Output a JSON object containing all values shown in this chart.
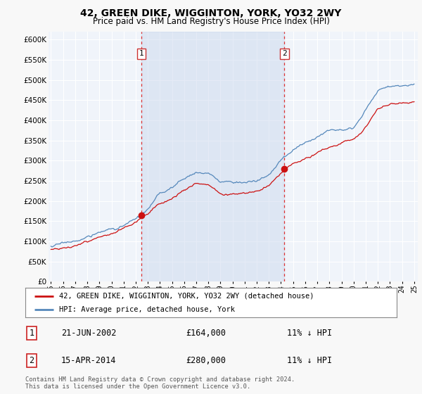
{
  "title": "42, GREEN DIKE, WIGGINTON, YORK, YO32 2WY",
  "subtitle": "Price paid vs. HM Land Registry's House Price Index (HPI)",
  "ylim": [
    0,
    620000
  ],
  "yticks": [
    0,
    50000,
    100000,
    150000,
    200000,
    250000,
    300000,
    350000,
    400000,
    450000,
    500000,
    550000,
    600000
  ],
  "ytick_labels": [
    "£0",
    "£50K",
    "£100K",
    "£150K",
    "£200K",
    "£250K",
    "£300K",
    "£350K",
    "£400K",
    "£450K",
    "£500K",
    "£550K",
    "£600K"
  ],
  "xlim_start": 1994.8,
  "xlim_end": 2025.3,
  "xtick_years": [
    1995,
    1996,
    1997,
    1998,
    1999,
    2000,
    2001,
    2002,
    2003,
    2004,
    2005,
    2006,
    2007,
    2008,
    2009,
    2010,
    2011,
    2012,
    2013,
    2014,
    2015,
    2016,
    2017,
    2018,
    2019,
    2020,
    2021,
    2022,
    2023,
    2024,
    2025
  ],
  "xtick_labels": [
    "95",
    "96",
    "97",
    "98",
    "99",
    "00",
    "01",
    "02",
    "03",
    "04",
    "05",
    "06",
    "07",
    "08",
    "09",
    "10",
    "11",
    "12",
    "13",
    "14",
    "15",
    "16",
    "17",
    "18",
    "19",
    "20",
    "21",
    "22",
    "23",
    "24",
    "25"
  ],
  "background_color": "#f8f8f8",
  "plot_bg_color": "#f0f4fa",
  "grid_color": "#ffffff",
  "shade_color": "#ccd9ee",
  "sale1_x": 2002.47,
  "sale1_y": 164000,
  "sale1_label": "1",
  "sale2_x": 2014.29,
  "sale2_y": 280000,
  "sale2_label": "2",
  "vline1_x": 2002.47,
  "vline2_x": 2014.29,
  "vline_color": "#dd3333",
  "red_line_color": "#cc1111",
  "blue_line_color": "#5588bb",
  "legend_label_red": "42, GREEN DIKE, WIGGINTON, YORK, YO32 2WY (detached house)",
  "legend_label_blue": "HPI: Average price, detached house, York",
  "footer_text": "Contains HM Land Registry data © Crown copyright and database right 2024.\nThis data is licensed under the Open Government Licence v3.0.",
  "table_row1": [
    "1",
    "21-JUN-2002",
    "£164,000",
    "11% ↓ HPI"
  ],
  "table_row2": [
    "2",
    "15-APR-2014",
    "£280,000",
    "11% ↓ HPI"
  ]
}
